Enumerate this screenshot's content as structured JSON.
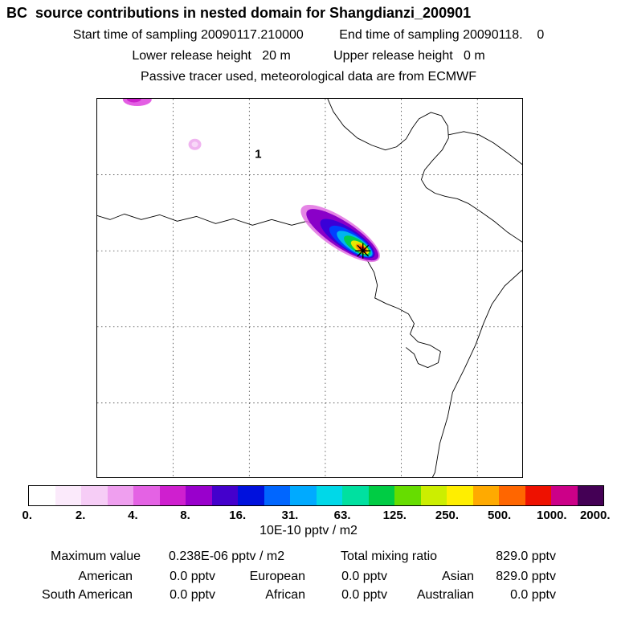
{
  "header": {
    "title": "BC  source contributions in nested domain for Shangdianzi_200901",
    "sampling_line": "Start time of sampling 20090117.210000          End time of sampling 20090118.    0",
    "height_line": "Lower release height   20 m            Upper release height   0 m",
    "tracer_line": "Passive tracer used, meteorological data are from ECMWF"
  },
  "map": {
    "site_label": "1"
  },
  "colorbar": {
    "ticks": [
      "0.",
      "2.",
      "4.",
      "8.",
      "16.",
      "31.",
      "63.",
      "125.",
      "250.",
      "500.",
      "1000.",
      "2000."
    ],
    "colors": [
      "#ffffff",
      "#fbeafb",
      "#f6cdf6",
      "#ef9fef",
      "#e462e4",
      "#cf1fcf",
      "#9900cc",
      "#4400cc",
      "#0011dd",
      "#0066ff",
      "#00aaff",
      "#00d8e8",
      "#00e0a0",
      "#00cc44",
      "#66dd00",
      "#ccee00",
      "#ffee00",
      "#ffaa00",
      "#ff6600",
      "#ee1100",
      "#cc0088",
      "#440055"
    ],
    "unit": "10E-10 pptv / m2"
  },
  "stats": {
    "max_label": "Maximum value",
    "max_value": "0.238E-06 pptv / m2",
    "total_label": "Total mixing ratio",
    "total_value": "829.0 pptv",
    "regions": [
      {
        "label": "American",
        "value": "0.0 pptv"
      },
      {
        "label": "European",
        "value": "0.0 pptv"
      },
      {
        "label": "Asian",
        "value": "829.0 pptv"
      },
      {
        "label": "South American",
        "value": "0.0 pptv"
      },
      {
        "label": "African",
        "value": "0.0 pptv"
      },
      {
        "label": "Australian",
        "value": "0.0 pptv"
      }
    ]
  },
  "chart_data": {
    "type": "heatmap",
    "title": "BC source contributions in nested domain for Shangdianzi_200901",
    "station": "Shangdianzi",
    "period": "200901",
    "sampling_start": "20090117.210000",
    "sampling_end": "20090118.    0",
    "lower_release_height_m": 20,
    "upper_release_height_m": 0,
    "tracer_note": "Passive tracer used, meteorological data are from ECMWF",
    "colorbar_levels": [
      0,
      2,
      4,
      8,
      16,
      31,
      63,
      125,
      250,
      500,
      1000,
      2000
    ],
    "colorbar_unit": "10E-10 pptv / m2",
    "maximum_value": "0.238E-06 pptv / m2",
    "total_mixing_ratio_pptv": 829.0,
    "contributions_pptv": {
      "American": 0.0,
      "European": 0.0,
      "Asian": 829.0,
      "South American": 0.0,
      "African": 0.0,
      "Australian": 0.0
    }
  }
}
